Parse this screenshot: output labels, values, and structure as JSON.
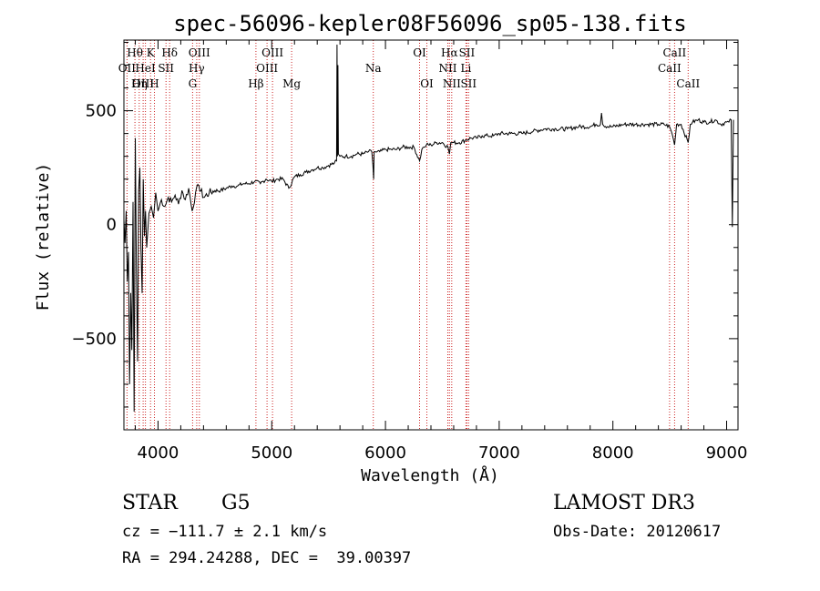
{
  "chart_data": {
    "type": "line",
    "title": "spec-56096-kepler08F56096_sp05-138.fits",
    "xlabel": "Wavelength (Å)",
    "ylabel": "Flux (relative)",
    "xlim": [
      3700,
      9100
    ],
    "ylim": [
      -900,
      810
    ],
    "x_ticks": [
      4000,
      5000,
      6000,
      7000,
      8000,
      9000
    ],
    "y_ticks": [
      -500,
      0,
      500
    ],
    "x_minor_step": 200,
    "y_minor_step": 100,
    "series": [
      {
        "name": "flux",
        "x": [
          3700,
          3710,
          3720,
          3730,
          3740,
          3750,
          3760,
          3770,
          3780,
          3790,
          3800,
          3810,
          3820,
          3830,
          3840,
          3850,
          3860,
          3870,
          3880,
          3890,
          3900,
          3920,
          3940,
          3960,
          3980,
          4000,
          4030,
          4060,
          4090,
          4120,
          4150,
          4180,
          4210,
          4240,
          4270,
          4300,
          4330,
          4360,
          4400,
          4450,
          4500,
          4550,
          4600,
          4650,
          4700,
          4750,
          4800,
          4850,
          4900,
          4950,
          5000,
          5050,
          5100,
          5150,
          5200,
          5250,
          5300,
          5350,
          5400,
          5450,
          5500,
          5550,
          5570,
          5574,
          5578,
          5582,
          5586,
          5600,
          5650,
          5700,
          5750,
          5800,
          5850,
          5880,
          5890,
          5896,
          5900,
          5910,
          5950,
          6000,
          6050,
          6100,
          6150,
          6200,
          6250,
          6300,
          6320,
          6340,
          6360,
          6400,
          6450,
          6500,
          6550,
          6563,
          6575,
          6600,
          6650,
          6700,
          6750,
          6800,
          6850,
          6900,
          6950,
          7000,
          7100,
          7200,
          7300,
          7400,
          7500,
          7600,
          7700,
          7800,
          7850,
          7890,
          7900,
          7910,
          7950,
          8000,
          8100,
          8200,
          8300,
          8400,
          8450,
          8498,
          8520,
          8542,
          8560,
          8600,
          8662,
          8680,
          8700,
          8750,
          8800,
          8850,
          8900,
          8950,
          9000,
          9020,
          9040,
          9050,
          9060
        ],
        "y": [
          20,
          -80,
          60,
          -250,
          -120,
          -700,
          -300,
          -550,
          100,
          -820,
          380,
          -200,
          -600,
          150,
          250,
          -100,
          -300,
          200,
          -50,
          60,
          -100,
          50,
          80,
          30,
          140,
          60,
          110,
          80,
          120,
          100,
          130,
          90,
          150,
          110,
          160,
          60,
          140,
          170,
          120,
          140,
          150,
          150,
          160,
          170,
          170,
          180,
          180,
          190,
          180,
          200,
          190,
          200,
          200,
          160,
          210,
          220,
          230,
          240,
          250,
          250,
          260,
          270,
          280,
          790,
          300,
          700,
          310,
          300,
          300,
          300,
          310,
          310,
          320,
          320,
          260,
          200,
          320,
          320,
          320,
          330,
          330,
          330,
          340,
          340,
          340,
          280,
          330,
          340,
          350,
          350,
          360,
          360,
          340,
          310,
          360,
          360,
          360,
          370,
          380,
          380,
          390,
          390,
          390,
          400,
          400,
          400,
          410,
          420,
          420,
          420,
          430,
          430,
          440,
          440,
          490,
          440,
          430,
          430,
          440,
          440,
          440,
          440,
          440,
          430,
          400,
          350,
          440,
          440,
          360,
          440,
          450,
          460,
          450,
          450,
          460,
          440,
          450,
          450,
          460,
          -10,
          460
        ]
      }
    ],
    "spectral_lines": [
      {
        "label": "Hθ",
        "wavelength": 3797,
        "row": 1
      },
      {
        "label": "OII",
        "wavelength": 3727,
        "row": 2
      },
      {
        "label": "OIII",
        "wavelength": 3869,
        "row": 3
      },
      {
        "label": "K",
        "wavelength": 3934,
        "row": 1
      },
      {
        "label": "HeI",
        "wavelength": 3889,
        "row": 2
      },
      {
        "label": "Hη",
        "wavelength": 3835,
        "row": 3
      },
      {
        "label": "H",
        "wavelength": 3968,
        "row": 3
      },
      {
        "label": "SII",
        "wavelength": 4070,
        "row": 2
      },
      {
        "label": "Hδ",
        "wavelength": 4102,
        "row": 1
      },
      {
        "label": "OIII",
        "wavelength": 4363,
        "row": 1
      },
      {
        "label": "Hγ",
        "wavelength": 4340,
        "row": 2
      },
      {
        "label": "G",
        "wavelength": 4304,
        "row": 3
      },
      {
        "label": "Hβ",
        "wavelength": 4861,
        "row": 3
      },
      {
        "label": "OIII",
        "wavelength": 5007,
        "row": 1
      },
      {
        "label": "OIII",
        "wavelength": 4959,
        "row": 2
      },
      {
        "label": "Mg",
        "wavelength": 5175,
        "row": 3
      },
      {
        "label": "Na",
        "wavelength": 5893,
        "row": 2
      },
      {
        "label": "OI",
        "wavelength": 6300,
        "row": 1
      },
      {
        "label": "OI",
        "wavelength": 6364,
        "row": 3
      },
      {
        "label": "Hα",
        "wavelength": 6563,
        "row": 1
      },
      {
        "label": "NII",
        "wavelength": 6548,
        "row": 2
      },
      {
        "label": "NII",
        "wavelength": 6583,
        "row": 3
      },
      {
        "label": "SII",
        "wavelength": 6716,
        "row": 1
      },
      {
        "label": "Li",
        "wavelength": 6708,
        "row": 2
      },
      {
        "label": "SII",
        "wavelength": 6731,
        "row": 3
      },
      {
        "label": "CaII",
        "wavelength": 8542,
        "row": 1
      },
      {
        "label": "CaII",
        "wavelength": 8498,
        "row": 2
      },
      {
        "label": "CaII",
        "wavelength": 8662,
        "row": 3
      }
    ]
  },
  "footer": {
    "object_class": "STAR",
    "subclass": "G5",
    "survey": "LAMOST DR3",
    "redshift": "cz = −111.7 ± 2.1 km/s",
    "obs_date": "Obs-Date: 20120617",
    "coords": "RA = 294.24288, DEC =  39.00397"
  }
}
